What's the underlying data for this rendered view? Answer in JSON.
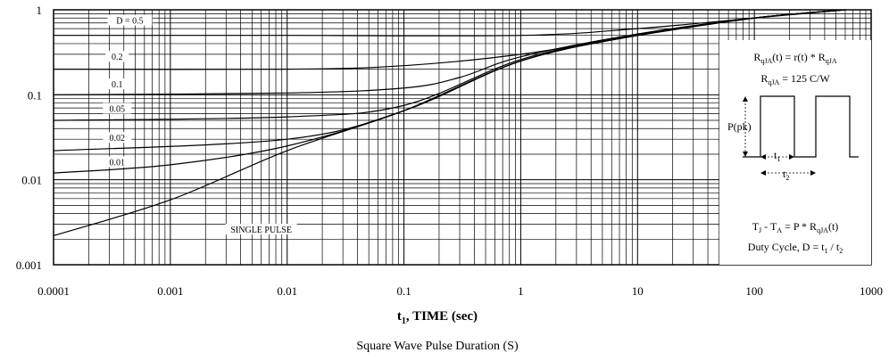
{
  "chart_data": {
    "type": "line",
    "x_scale": "log",
    "y_scale": "log",
    "xlim": [
      0.0001,
      1000
    ],
    "ylim": [
      0.001,
      1
    ],
    "grid": true,
    "x_tick_labels": [
      "0.0001",
      "0.001",
      "0.01",
      "0.1",
      "1",
      "10",
      "100",
      "1000"
    ],
    "y_tick_labels": [
      "1",
      "0.1",
      "0.01",
      "0.001"
    ],
    "xlabel_main": "t",
    "xlabel_sub": "1",
    "xlabel_rest": ", TIME (sec)",
    "caption": "Square Wave Pulse Duration (S)",
    "series": [
      {
        "name": "D = 0.5",
        "points": [
          [
            0.0001,
            0.5
          ],
          [
            0.01,
            0.5
          ],
          [
            1,
            0.5
          ],
          [
            10,
            0.6
          ],
          [
            100,
            0.8
          ],
          [
            600,
            1.0
          ]
        ]
      },
      {
        "name": "0.2",
        "points": [
          [
            0.0001,
            0.2
          ],
          [
            0.01,
            0.2
          ],
          [
            0.1,
            0.22
          ],
          [
            1,
            0.3
          ],
          [
            10,
            0.5
          ],
          [
            100,
            0.8
          ],
          [
            600,
            1.0
          ]
        ]
      },
      {
        "name": "0.1",
        "points": [
          [
            0.0001,
            0.1
          ],
          [
            0.01,
            0.105
          ],
          [
            0.1,
            0.12
          ],
          [
            0.3,
            0.16
          ],
          [
            1,
            0.28
          ],
          [
            10,
            0.52
          ],
          [
            100,
            0.8
          ],
          [
            600,
            1.0
          ]
        ]
      },
      {
        "name": "0.05",
        "points": [
          [
            0.0001,
            0.05
          ],
          [
            0.01,
            0.055
          ],
          [
            0.1,
            0.075
          ],
          [
            1,
            0.26
          ],
          [
            10,
            0.51
          ],
          [
            100,
            0.8
          ],
          [
            600,
            1.0
          ]
        ]
      },
      {
        "name": "0.02",
        "points": [
          [
            0.0001,
            0.022
          ],
          [
            0.01,
            0.03
          ],
          [
            0.1,
            0.065
          ],
          [
            1,
            0.25
          ],
          [
            10,
            0.5
          ],
          [
            100,
            0.8
          ],
          [
            600,
            1.0
          ]
        ]
      },
      {
        "name": "0.01",
        "points": [
          [
            0.0001,
            0.012
          ],
          [
            0.001,
            0.015
          ],
          [
            0.01,
            0.025
          ],
          [
            0.1,
            0.065
          ],
          [
            1,
            0.25
          ],
          [
            10,
            0.5
          ],
          [
            100,
            0.8
          ],
          [
            600,
            1.0
          ]
        ]
      },
      {
        "name": "SINGLE PULSE",
        "points": [
          [
            0.0001,
            0.0022
          ],
          [
            0.001,
            0.0058
          ],
          [
            0.01,
            0.022
          ],
          [
            0.1,
            0.065
          ],
          [
            1,
            0.25
          ],
          [
            10,
            0.5
          ],
          [
            100,
            0.8
          ],
          [
            600,
            1.0
          ]
        ]
      }
    ],
    "series_labels": [
      {
        "text": "D = 0.5",
        "x": 0.00045,
        "y": 0.72
      },
      {
        "text": "0.2",
        "x": 0.00035,
        "y": 0.27
      },
      {
        "text": "0.1",
        "x": 0.00035,
        "y": 0.128
      },
      {
        "text": "0.05",
        "x": 0.00035,
        "y": 0.066
      },
      {
        "text": "0.02",
        "x": 0.00035,
        "y": 0.03
      },
      {
        "text": "0.01",
        "x": 0.00035,
        "y": 0.0155
      },
      {
        "text": "SINGLE PULSE",
        "x": 0.006,
        "y": 0.0025
      }
    ],
    "inset": {
      "formula1": "R",
      "formula1_sub": "qJA",
      "formula1_mid": "(t) = r(t) * R",
      "formula1_sub2": "qJA",
      "formula2": "R",
      "formula2_sub": "qJA",
      "formula2_rest": " = 125 C/W",
      "ppk_label": "P(pk)",
      "t1_label": "t",
      "t1_sub": "1",
      "t2_label": "t",
      "t2_sub": "2",
      "eq1_a": "T",
      "eq1_a_sub": "J",
      "eq1_b": " - T",
      "eq1_b_sub": "A",
      "eq1_c": " = P * R",
      "eq1_c_sub": "qJA",
      "eq1_d": "(t)",
      "duty": "Duty Cycle, D = t",
      "duty_sub1": "1",
      "duty_mid": " / t",
      "duty_sub2": "2"
    }
  }
}
